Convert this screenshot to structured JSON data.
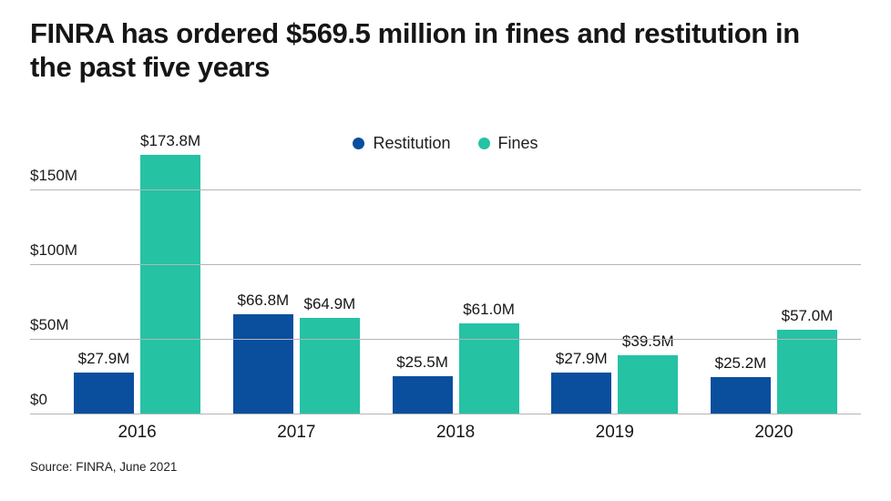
{
  "title": "FINRA has ordered $569.5 million in fines and restitution in the past five years",
  "source": "Source: FINRA, June 2021",
  "legend": [
    {
      "label": "Restitution",
      "color": "#0a4e9e"
    },
    {
      "label": "Fines",
      "color": "#25c2a4"
    }
  ],
  "colors": {
    "restitution": "#0a4e9e",
    "fines": "#25c2a4",
    "gridline": "#b5b5b5",
    "text": "#161616",
    "background": "#ffffff"
  },
  "chart_data": {
    "type": "bar",
    "title": "FINRA has ordered $569.5 million in fines and restitution in the past five years",
    "categories": [
      "2016",
      "2017",
      "2018",
      "2019",
      "2020"
    ],
    "series": [
      {
        "name": "Restitution",
        "color": "#0a4e9e",
        "values": [
          27.9,
          66.8,
          25.5,
          27.9,
          25.2
        ],
        "labels": [
          "$27.9M",
          "$66.8M",
          "$25.5M",
          "$27.9M",
          "$25.2M"
        ]
      },
      {
        "name": "Fines",
        "color": "#25c2a4",
        "values": [
          173.8,
          64.9,
          61.0,
          39.5,
          57.0
        ],
        "labels": [
          "$173.8M",
          "$64.9M",
          "$61.0M",
          "$39.5M",
          "$57.0M"
        ]
      }
    ],
    "xlabel": "",
    "ylabel": "",
    "ytick_values": [
      0,
      50,
      100,
      150
    ],
    "ytick_labels": [
      "$0",
      "$50M",
      "$100M",
      "$150M"
    ],
    "ylim": [
      0,
      175
    ],
    "grid": true,
    "legend_position": "top-center",
    "value_labels": true
  }
}
